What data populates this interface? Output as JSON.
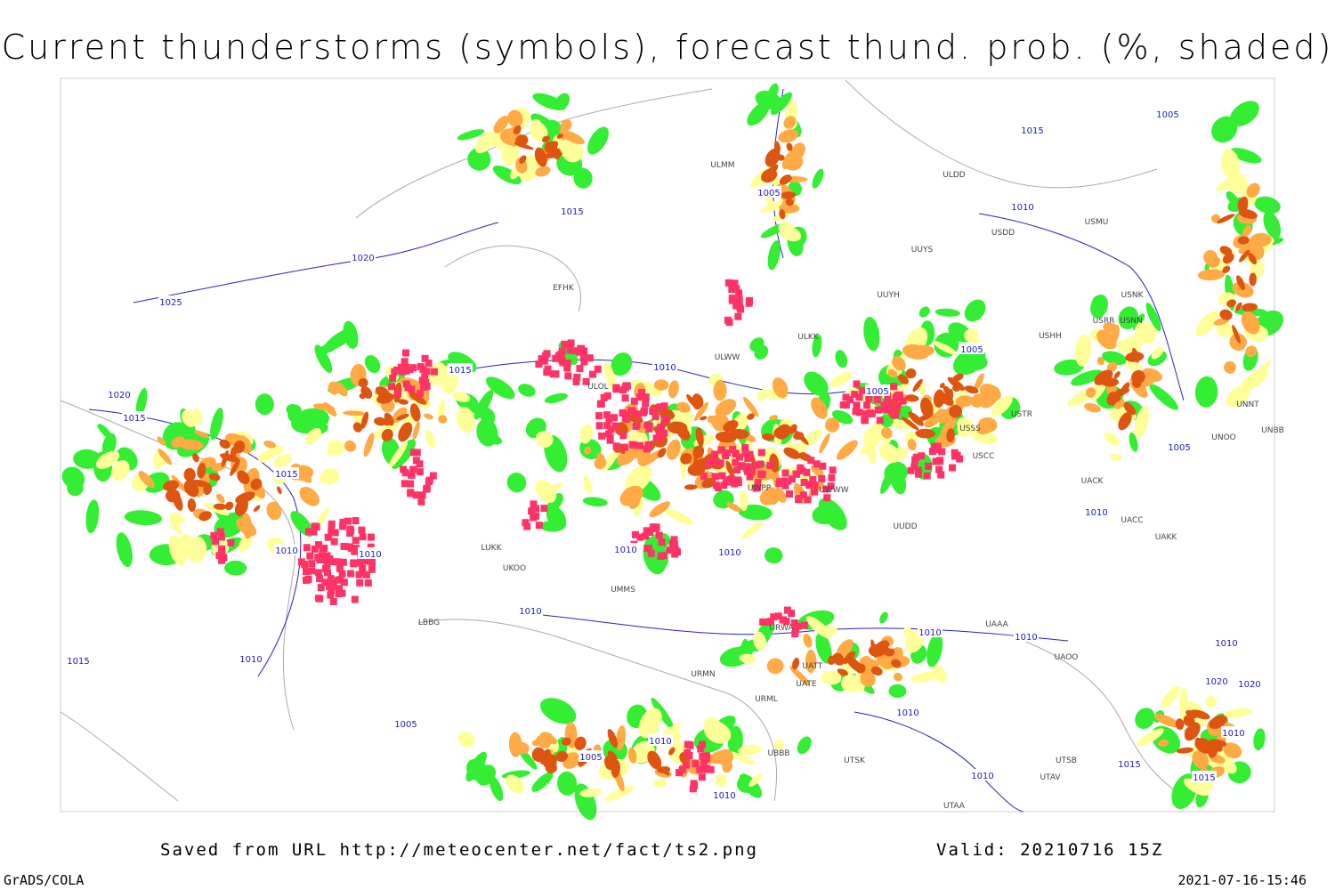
{
  "header": {
    "title": "Current thunderstorms (symbols), forecast thund. prob. (%, shaded)"
  },
  "footer": {
    "source": "Saved from URL http://meteocenter.net/fact/ts2.png",
    "valid": "Valid: 20210716 15Z",
    "software": "GrADS/COLA",
    "timestamp": "2021-07-16-15:46"
  },
  "map": {
    "isobar_labels": [
      "1005",
      "1015",
      "1005",
      "1015",
      "1010",
      "1020",
      "1025",
      "1015",
      "1010",
      "1005",
      "1005",
      "1020",
      "1015",
      "1015",
      "1005",
      "1010",
      "1010",
      "1010",
      "1010",
      "1010",
      "1010",
      "1010",
      "1010",
      "1010",
      "1015",
      "1010",
      "1020",
      "1020",
      "1010",
      "1005",
      "1010",
      "1010",
      "1005",
      "1010",
      "1015",
      "1015",
      "1010"
    ],
    "stations": [
      "ULDD",
      "USDD",
      "USMU",
      "UUYS",
      "UUYH",
      "ULKK",
      "ULWW",
      "ULOL",
      "USSS",
      "USTR",
      "USCC",
      "UUDD",
      "UACK",
      "UACC",
      "UAKK",
      "LUKK",
      "UKOO",
      "LBBG",
      "URML",
      "UTAA",
      "UTSB",
      "UTAV",
      "UATE",
      "UATT",
      "UBBB",
      "URWA",
      "UWPP",
      "UWWW",
      "USNN",
      "USHH",
      "UNBB",
      "UNNT",
      "UNOO",
      "UAAA",
      "UAOO",
      "EFHK",
      "ULMM",
      "USRR",
      "USNK",
      "UMMS",
      "URMN",
      "UTSK"
    ]
  }
}
